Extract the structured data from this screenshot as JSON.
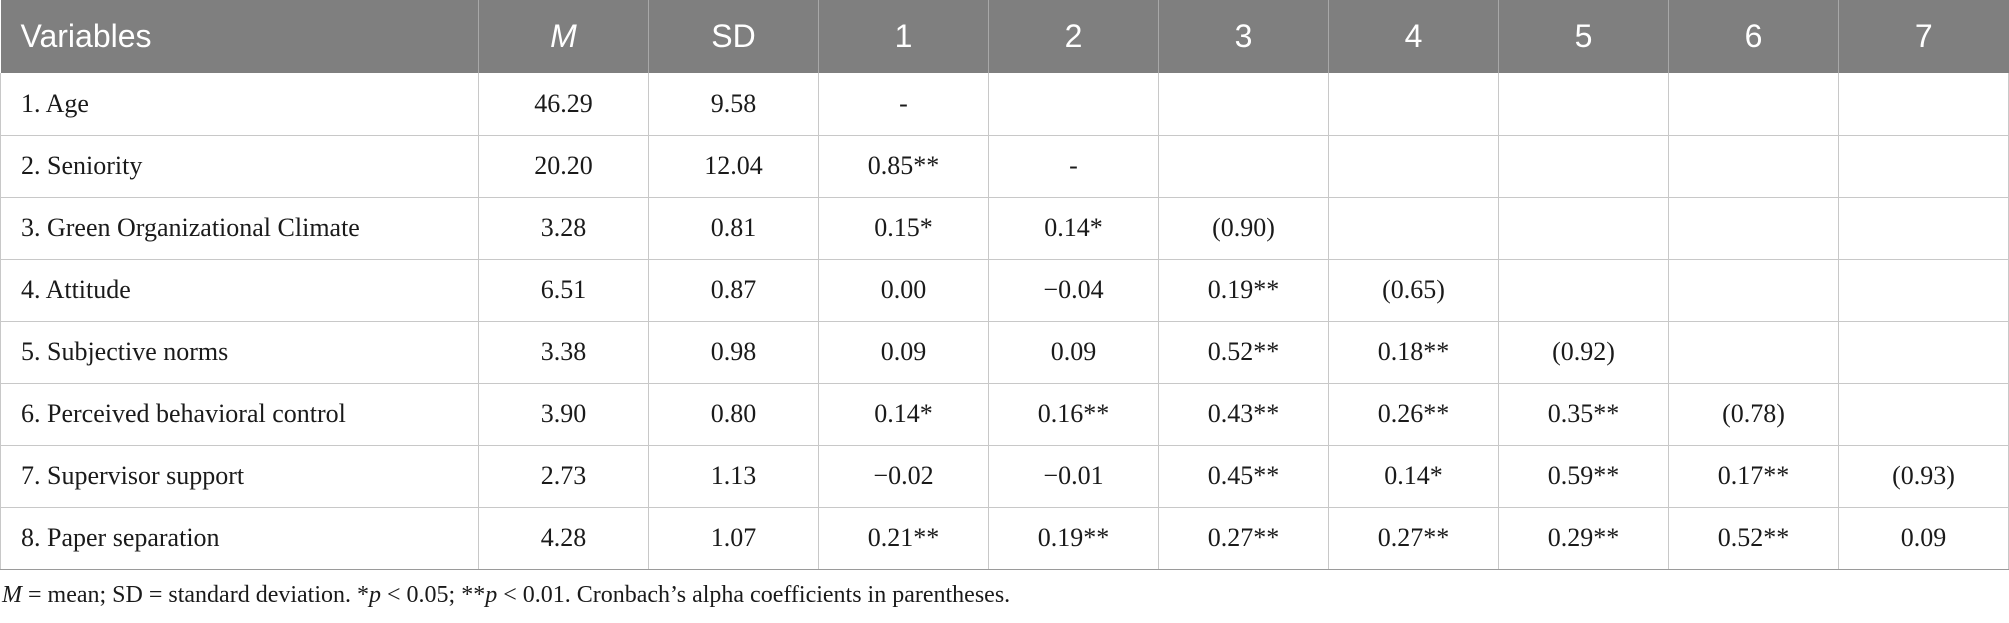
{
  "header": [
    "Variables",
    "M",
    "SD",
    "1",
    "2",
    "3",
    "4",
    "5",
    "6",
    "7"
  ],
  "rows": [
    [
      "1. Age",
      "46.29",
      "9.58",
      "-",
      "",
      "",
      "",
      "",
      "",
      ""
    ],
    [
      "2. Seniority",
      "20.20",
      "12.04",
      "0.85**",
      "-",
      "",
      "",
      "",
      "",
      ""
    ],
    [
      "3. Green Organizational Climate",
      "3.28",
      "0.81",
      "0.15*",
      "0.14*",
      "(0.90)",
      "",
      "",
      "",
      ""
    ],
    [
      "4. Attitude",
      "6.51",
      "0.87",
      "0.00",
      "−0.04",
      "0.19**",
      "(0.65)",
      "",
      "",
      ""
    ],
    [
      "5. Subjective norms",
      "3.38",
      "0.98",
      "0.09",
      "0.09",
      "0.52**",
      "0.18**",
      "(0.92)",
      "",
      ""
    ],
    [
      "6. Perceived behavioral control",
      "3.90",
      "0.80",
      "0.14*",
      "0.16**",
      "0.43**",
      "0.26**",
      "0.35**",
      "(0.78)",
      ""
    ],
    [
      "7. Supervisor support",
      "2.73",
      "1.13",
      "−0.02",
      "−0.01",
      "0.45**",
      "0.14*",
      "0.59**",
      "0.17**",
      "(0.93)"
    ],
    [
      "8. Paper separation",
      "4.28",
      "1.07",
      "0.21**",
      "0.19**",
      "0.27**",
      "0.27**",
      "0.29**",
      "0.52**",
      "0.09"
    ]
  ],
  "footnote": {
    "m_symbol": "M",
    "m_def": " = mean; SD = standard deviation. *",
    "p1_symbol": "p",
    "p1_def": " < 0.05; **",
    "p2_symbol": "p",
    "p2_def": " < 0.01. Cronbach’s alpha coefficients in parentheses."
  },
  "colors": {
    "header_bg": "#7f7f7f",
    "header_text": "#ffffff",
    "grid": "#c8c8c8"
  }
}
